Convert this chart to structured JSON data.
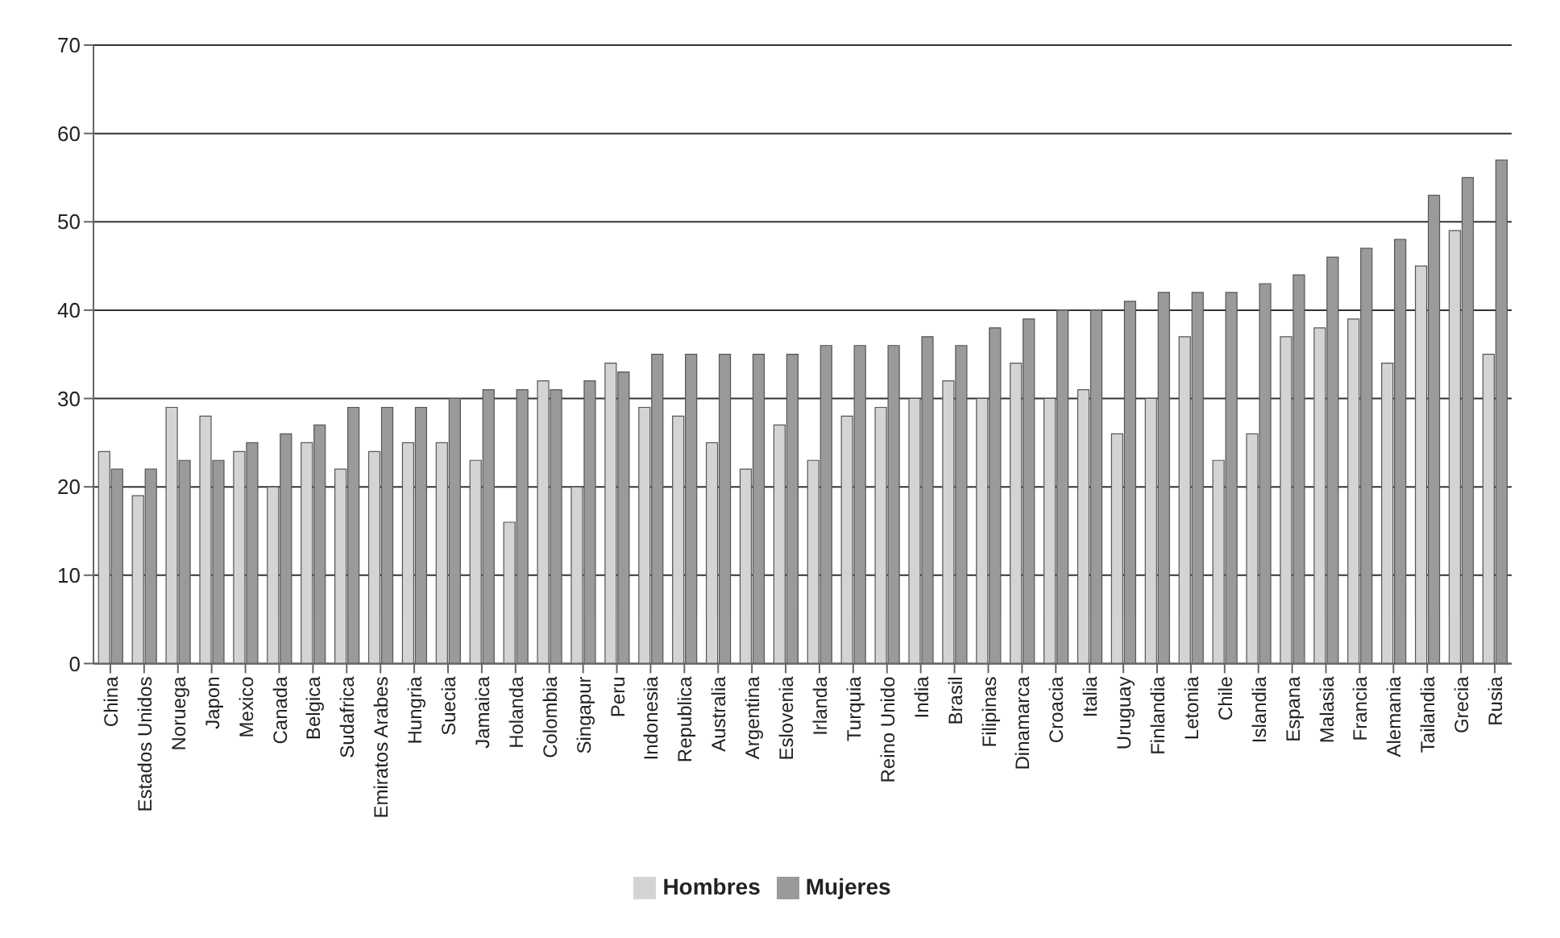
{
  "chart_data": {
    "type": "bar",
    "categories": [
      "China",
      "Estados Unidos",
      "Noruega",
      "Japon",
      "Mexico",
      "Canada",
      "Belgica",
      "Sudafrica",
      "Emiratos Arabes",
      "Hungria",
      "Suecia",
      "Jamaica",
      "Holanda",
      "Colombia",
      "Singapur",
      "Peru",
      "Indonesia",
      "Republica",
      "Australia",
      "Argentina",
      "Eslovenia",
      "Irlanda",
      "Turquia",
      "Reino Unido",
      "India",
      "Brasil",
      "Filipinas",
      "Dinamarca",
      "Croacia",
      "Italia",
      "Uruguay",
      "Finlandia",
      "Letonia",
      "Chile",
      "Islandia",
      "Espana",
      "Malasia",
      "Francia",
      "Alemania",
      "Tailandia",
      "Grecia",
      "Rusia"
    ],
    "series": [
      {
        "name": "Hombres",
        "color": "#d4d4d4",
        "values": [
          24,
          19,
          29,
          28,
          24,
          20,
          25,
          22,
          24,
          25,
          25,
          23,
          16,
          32,
          20,
          34,
          29,
          28,
          25,
          22,
          27,
          23,
          28,
          29,
          30,
          32,
          30,
          34,
          30,
          31,
          26,
          30,
          37,
          23,
          26,
          37,
          38,
          39,
          34,
          45,
          49,
          35
        ]
      },
      {
        "name": "Mujeres",
        "color": "#9a9a9a",
        "values": [
          22,
          22,
          23,
          23,
          25,
          26,
          27,
          29,
          29,
          29,
          30,
          31,
          31,
          31,
          32,
          33,
          35,
          35,
          35,
          35,
          35,
          36,
          36,
          36,
          37,
          36,
          38,
          39,
          40,
          40,
          41,
          42,
          42,
          42,
          43,
          44,
          46,
          47,
          48,
          53,
          55,
          57
        ]
      }
    ],
    "ylim": [
      0,
      70
    ],
    "yticks": [
      0,
      10,
      20,
      30,
      40,
      50,
      60,
      70
    ],
    "grid": "y",
    "legend": "bottom"
  }
}
